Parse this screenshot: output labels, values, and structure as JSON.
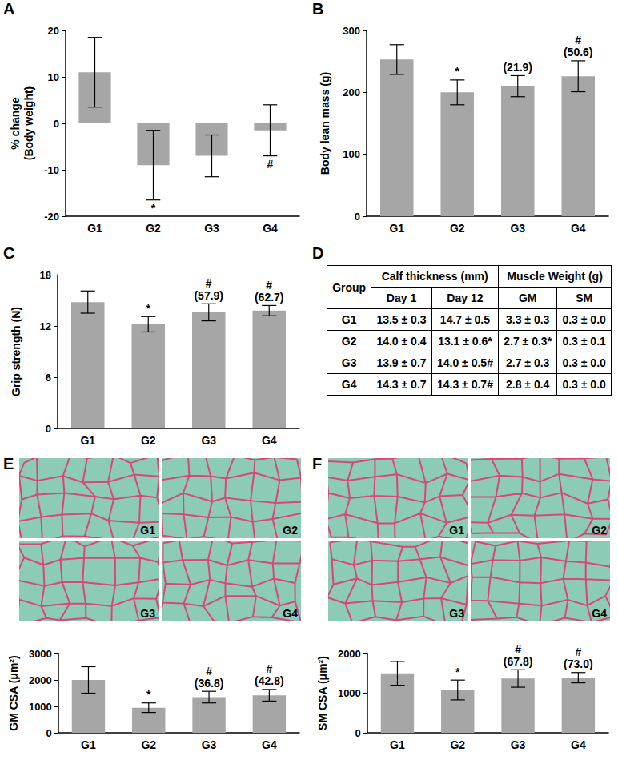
{
  "chart_data": [
    {
      "panel": "A",
      "type": "bar",
      "categories": [
        "G1",
        "G2",
        "G3",
        "G4"
      ],
      "values": [
        11,
        -9,
        -7,
        -1.5
      ],
      "errors": [
        7.5,
        7.5,
        4.5,
        5.5
      ],
      "annotations": [
        null,
        [
          "*"
        ],
        null,
        [
          "#"
        ]
      ],
      "ylabel": "% change\n(Body weight)",
      "color": "#a6a6a6",
      "ylim": [
        -20,
        20
      ],
      "yticks": [
        -20,
        -10,
        0,
        10,
        20
      ],
      "grid": false
    },
    {
      "panel": "B",
      "type": "bar",
      "categories": [
        "G1",
        "G2",
        "G3",
        "G4"
      ],
      "values": [
        253,
        200,
        210,
        226
      ],
      "errors": [
        24,
        20,
        17,
        25
      ],
      "annotations": [
        null,
        [
          "*"
        ],
        [
          "(21.9)"
        ],
        [
          "#",
          "(50.6)"
        ]
      ],
      "ylabel": "Body lean mass (g)",
      "color": "#a6a6a6",
      "ylim": [
        0,
        300
      ],
      "yticks": [
        0,
        100,
        200,
        300
      ],
      "grid": false
    },
    {
      "panel": "C",
      "type": "bar",
      "categories": [
        "G1",
        "G2",
        "G3",
        "G4"
      ],
      "values": [
        14.8,
        12.2,
        13.6,
        13.8
      ],
      "errors": [
        1.3,
        0.9,
        1.0,
        0.6
      ],
      "annotations": [
        null,
        [
          "*"
        ],
        [
          "#",
          "(57.9)"
        ],
        [
          "#",
          "(62.7)"
        ]
      ],
      "ylabel": "Grip strength (N)",
      "color": "#a6a6a6",
      "ylim": [
        0,
        18
      ],
      "yticks": [
        0,
        6,
        12,
        18
      ],
      "grid": false
    },
    {
      "type": "bar",
      "categories": [
        "G1",
        "G2",
        "G3",
        "G4"
      ],
      "values": [
        2000,
        950,
        1350,
        1420
      ],
      "errors": [
        500,
        180,
        220,
        220
      ],
      "annotations": [
        null,
        [
          "*"
        ],
        [
          "#",
          "(36.8)"
        ],
        [
          "#",
          "(42.8)"
        ]
      ],
      "ylabel": "GM CSA (μm²)",
      "color": "#a6a6a6",
      "ylim": [
        0,
        3000
      ],
      "yticks": [
        0,
        1000,
        2000,
        3000
      ],
      "grid": false
    },
    {
      "type": "bar",
      "categories": [
        "G1",
        "G2",
        "G3",
        "G4"
      ],
      "values": [
        1500,
        1080,
        1370,
        1390
      ],
      "errors": [
        300,
        250,
        220,
        130
      ],
      "annotations": [
        null,
        [
          "*"
        ],
        [
          "#",
          "(67.8)"
        ],
        [
          "#",
          "(73.0)"
        ]
      ],
      "ylabel": "SM CSA (μm²)",
      "color": "#a6a6a6",
      "ylim": [
        0,
        2000
      ],
      "yticks": [
        0,
        1000,
        2000
      ],
      "grid": false
    }
  ],
  "panel_D": {
    "panel": "D",
    "table": {
      "header": [
        [
          "Group",
          "Calf thickness (mm)",
          "Muscle Weight (g)"
        ],
        [
          "Day 1",
          "Day 12",
          "GM",
          "SM"
        ]
      ],
      "rows": [
        [
          "G1",
          "13.5 ± 0.3",
          "14.7 ± 0.5",
          "3.3 ± 0.3",
          "0.3 ± 0.0"
        ],
        [
          "G2",
          "14.0 ± 0.4",
          "13.1 ± 0.6*",
          "2.7 ± 0.3*",
          "0.3 ± 0.1"
        ],
        [
          "G3",
          "13.9 ± 0.7",
          "14.0 ± 0.5#",
          "2.7 ± 0.3",
          "0.3 ± 0.0"
        ],
        [
          "G4",
          "14.3 ± 0.7",
          "14.3 ± 0.7#",
          "2.8 ± 0.4",
          "0.3 ± 0.0"
        ]
      ]
    }
  },
  "micrographs": [
    {
      "panel": "E",
      "labels": [
        "G1",
        "G2",
        "G3",
        "G4"
      ]
    },
    {
      "panel": "F",
      "labels": [
        "G1",
        "G2",
        "G3",
        "G4"
      ]
    }
  ]
}
